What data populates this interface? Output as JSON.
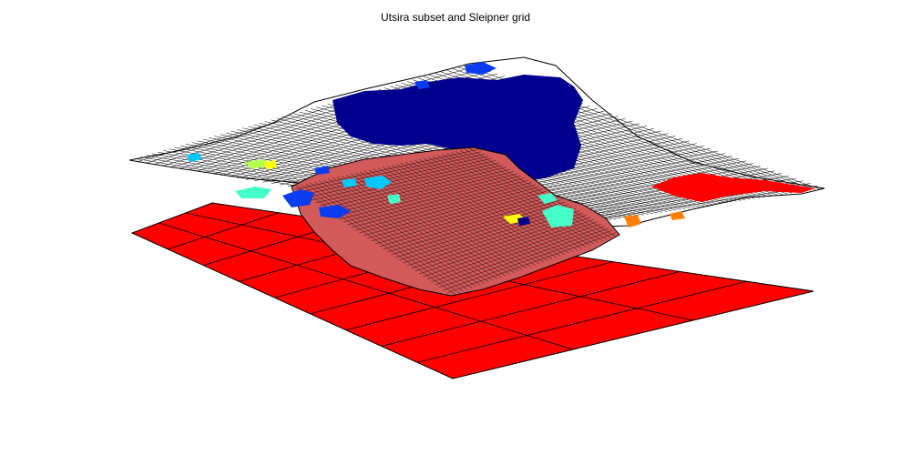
{
  "figure": {
    "title": "Utsira subset and Sleipner grid"
  },
  "colors": {
    "background": "#ffffff",
    "sleipner_grid_fill": "#ff0000",
    "utsira_mesh_line": "#000000",
    "utsira_mesh_fill": "#ffffff",
    "subset_fill": "#d25a5a",
    "trap_region_navy": "#00008f",
    "trap_region_blue": "#0a3cf0",
    "trap_region_cyan": "#00c8ff",
    "trap_region_aqua": "#46ffc8",
    "trap_region_yellow": "#ffff00",
    "trap_region_orange": "#ff8000",
    "trap_region_red": "#ff0000",
    "trap_region_green": "#b4ff50"
  }
}
